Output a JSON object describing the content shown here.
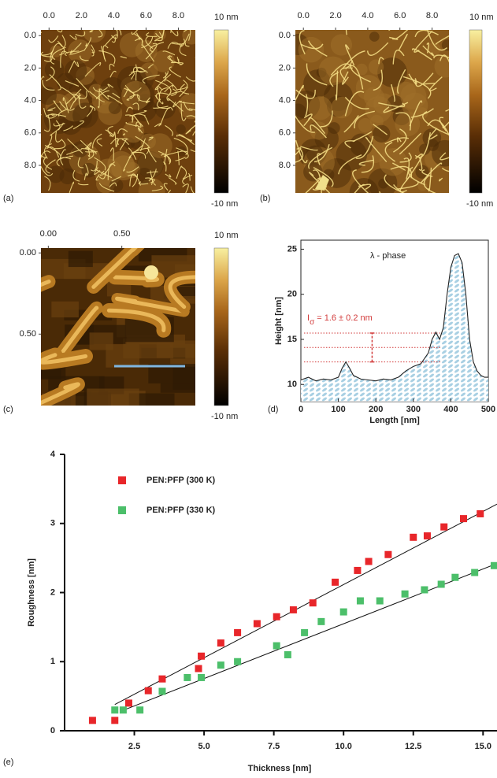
{
  "chart_data": [
    {
      "type": "image",
      "panel_label": "(a)",
      "xlim": [
        -0.5,
        9.05
      ],
      "ylim": [
        -0.35,
        9.7
      ],
      "xticks": [
        {
          "value": 0,
          "label": "0.0"
        },
        {
          "value": 2,
          "label": "2.0"
        },
        {
          "value": 4,
          "label": "4.0"
        },
        {
          "value": 6,
          "label": "6.0"
        },
        {
          "value": 8,
          "label": "8.0"
        }
      ],
      "yticks": [
        {
          "value": 0,
          "label": "0.0"
        },
        {
          "value": 2,
          "label": "2.0"
        },
        {
          "value": 4,
          "label": "4.0"
        },
        {
          "value": 6,
          "label": "6.0"
        },
        {
          "value": 8,
          "label": "8.0"
        }
      ],
      "colorbar_labels": [
        "10 nm",
        "-10 nm"
      ]
    },
    {
      "type": "image",
      "panel_label": "(b)",
      "xlim": [
        -0.5,
        9.05
      ],
      "ylim": [
        -0.35,
        9.7
      ],
      "xticks": [
        {
          "value": 0,
          "label": "0.0"
        },
        {
          "value": 2,
          "label": "2.0"
        },
        {
          "value": 4,
          "label": "4.0"
        },
        {
          "value": 6,
          "label": "6.0"
        },
        {
          "value": 8,
          "label": "8.0"
        }
      ],
      "yticks": [
        {
          "value": 0,
          "label": "0.0"
        },
        {
          "value": 2,
          "label": "2.0"
        },
        {
          "value": 4,
          "label": "4.0"
        },
        {
          "value": 6,
          "label": "6.0"
        },
        {
          "value": 8,
          "label": "8.0"
        }
      ],
      "colorbar_labels": [
        "10 nm",
        "-10 nm"
      ]
    },
    {
      "type": "image",
      "panel_label": "(c)",
      "xlim": [
        -0.05,
        1.0
      ],
      "ylim": [
        -0.03,
        0.94
      ],
      "xticks": [
        {
          "value": 0,
          "label": "0.00"
        },
        {
          "value": 0.5,
          "label": "0.50"
        }
      ],
      "yticks": [
        {
          "value": 0,
          "label": "0.00"
        },
        {
          "value": 0.5,
          "label": "0.50"
        }
      ],
      "colorbar_labels": [
        "10 nm",
        "-10 nm"
      ]
    },
    {
      "type": "line",
      "panel_label": "(d)",
      "xlabel": "Length [nm]",
      "ylabel": "Height [nm]",
      "x": [
        0,
        20,
        40,
        60,
        80,
        100,
        110,
        120,
        130,
        140,
        160,
        180,
        200,
        220,
        240,
        260,
        280,
        300,
        320,
        340,
        350,
        360,
        370,
        380,
        390,
        400,
        410,
        420,
        430,
        440,
        450,
        460,
        470,
        480,
        490,
        500
      ],
      "values": [
        10.5,
        10.8,
        10.4,
        10.6,
        10.5,
        10.8,
        11.8,
        12.5,
        11.8,
        11,
        10.6,
        10.5,
        10.4,
        10.6,
        10.5,
        10.8,
        11.5,
        12,
        12.3,
        13.5,
        15,
        15.8,
        15,
        16.3,
        20,
        23,
        24.3,
        24.5,
        23.5,
        20,
        15,
        12.5,
        11.5,
        11,
        10.8,
        10.8
      ],
      "color": "#222222",
      "xlim": [
        0,
        500
      ],
      "ylim": [
        8.1,
        26
      ],
      "xticks": [
        0,
        100,
        200,
        300,
        400,
        500
      ],
      "yticks": [
        10,
        15,
        20,
        25
      ],
      "reference_lines": [
        12.5,
        14.1,
        15.7
      ],
      "error_bar": {
        "x": 190,
        "low": 12.5,
        "high": 15.7
      },
      "annotation_phase": "λ - phase",
      "annotation_symbol": "I",
      "annotation_subscript": "σ",
      "annotation_text": "= 1.6 ± 0.2 nm"
    },
    {
      "type": "scatter",
      "panel_label": "(e)",
      "xlabel": "Thickness [nm]",
      "ylabel": "Roughness [nm]",
      "xlim": [
        0,
        15.5
      ],
      "ylim": [
        0,
        4
      ],
      "xticks": [
        2.5,
        {
          "value": 5,
          "label": "5.0"
        },
        {
          "value": 7.5,
          "label": "7.5"
        },
        {
          "value": 10,
          "label": "10.0"
        },
        12.5,
        {
          "value": 15,
          "label": "15.0"
        }
      ],
      "yticks": [
        0,
        1,
        2,
        3,
        4
      ],
      "series": [
        {
          "name": "PEN:PFP (300 K)",
          "color": "#e8262a",
          "x": [
            1.0,
            1.8,
            2.3,
            3.0,
            3.5,
            4.8,
            4.9,
            5.6,
            6.2,
            6.9,
            7.6,
            8.2,
            8.9,
            9.7,
            10.5,
            10.9,
            11.6,
            12.5,
            13.0,
            13.6,
            14.3,
            14.9
          ],
          "values": [
            0.15,
            0.15,
            0.4,
            0.58,
            0.75,
            0.9,
            1.08,
            1.27,
            1.42,
            1.55,
            1.65,
            1.75,
            1.85,
            2.15,
            2.32,
            2.45,
            2.55,
            2.8,
            2.82,
            2.95,
            3.07,
            3.14
          ],
          "fit_x": [
            1.8,
            15.5
          ],
          "fit_y": [
            0.38,
            3.28
          ]
        },
        {
          "name": "PEN:PFP (330 K)",
          "color": "#4cbf6a",
          "x": [
            1.8,
            2.1,
            2.7,
            3.5,
            4.4,
            4.9,
            5.6,
            6.2,
            7.6,
            8.0,
            8.6,
            9.2,
            10.0,
            10.6,
            11.3,
            12.2,
            12.9,
            13.5,
            14.0,
            14.7,
            15.4
          ],
          "values": [
            0.3,
            0.3,
            0.3,
            0.57,
            0.77,
            0.77,
            0.95,
            1.0,
            1.23,
            1.1,
            1.42,
            1.58,
            1.72,
            1.88,
            1.88,
            1.98,
            2.04,
            2.12,
            2.22,
            2.29,
            2.39
          ],
          "fit_x": [
            2.0,
            15.5
          ],
          "fit_y": [
            0.28,
            2.42
          ]
        }
      ]
    }
  ]
}
